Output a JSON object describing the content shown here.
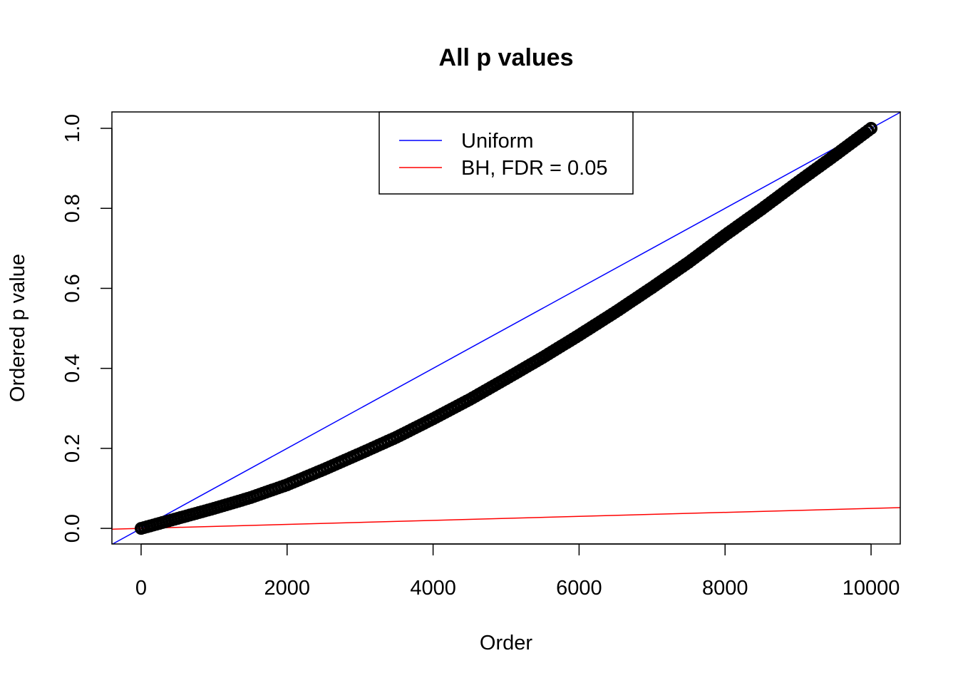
{
  "chart_data": {
    "type": "scatter",
    "title": "All p values",
    "xlabel": "Order",
    "ylabel": "Ordered p value",
    "xlim": [
      -400,
      10400
    ],
    "ylim": [
      -0.039,
      1.041
    ],
    "xticks": [
      0,
      2000,
      4000,
      6000,
      8000,
      10000
    ],
    "xtick_labels": [
      "0",
      "2000",
      "4000",
      "6000",
      "8000",
      "10000"
    ],
    "yticks": [
      0,
      0.2,
      0.4,
      0.6,
      0.8,
      1.0
    ],
    "ytick_labels": [
      "0.0",
      "0.2",
      "0.4",
      "0.6",
      "0.8",
      "1.0"
    ],
    "grid": false,
    "series": {
      "x": [
        0,
        500,
        1000,
        1500,
        2000,
        2500,
        3000,
        3500,
        4000,
        4500,
        5000,
        5500,
        6000,
        6500,
        7000,
        7500,
        8000,
        8500,
        9000,
        9500,
        10000
      ],
      "y": [
        0.0,
        0.025,
        0.05,
        0.077,
        0.109,
        0.147,
        0.187,
        0.228,
        0.274,
        0.322,
        0.374,
        0.427,
        0.483,
        0.541,
        0.602,
        0.665,
        0.733,
        0.798,
        0.866,
        0.932,
        1.0
      ],
      "color": "#000000"
    },
    "lines": [
      {
        "name": "Uniform",
        "slope": 0.0001,
        "intercept": 0,
        "color": "#0000FF"
      },
      {
        "name": "BH, FDR = 0.05",
        "slope": 5e-06,
        "intercept": 0,
        "color": "#FF0000"
      }
    ],
    "legend": {
      "position": "top",
      "entries": [
        "Uniform",
        "BH, FDR = 0.05"
      ]
    }
  }
}
